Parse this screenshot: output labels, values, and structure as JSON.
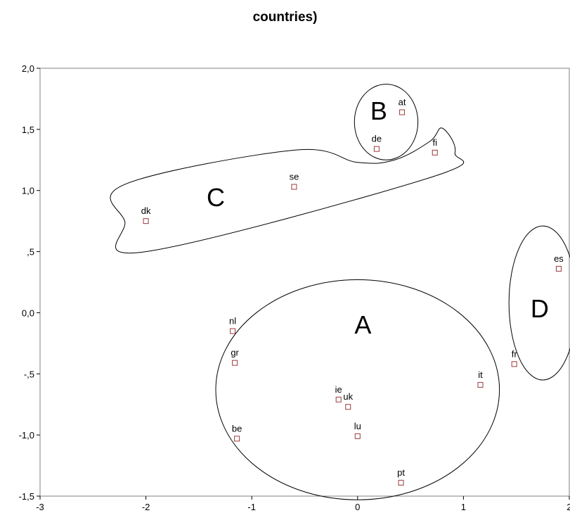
{
  "chart_data": {
    "type": "scatter",
    "title": "countries)",
    "xlim": [
      -3,
      2
    ],
    "ylim": [
      -1.5,
      2.0
    ],
    "x_ticks": [
      "-3",
      "-2",
      "-1",
      "0",
      "1",
      "2"
    ],
    "y_ticks": [
      "-1,5",
      "-1,0",
      "-,5",
      "0,0",
      ",5",
      "1,0",
      "1,5",
      "2,0"
    ],
    "grid": false,
    "marker_color": "#9b3a3a",
    "points": [
      {
        "label": "at",
        "x": 0.42,
        "y": 1.64
      },
      {
        "label": "de",
        "x": 0.18,
        "y": 1.34
      },
      {
        "label": "fi",
        "x": 0.73,
        "y": 1.31
      },
      {
        "label": "se",
        "x": -0.6,
        "y": 1.03
      },
      {
        "label": "dk",
        "x": -2.0,
        "y": 0.75
      },
      {
        "label": "es",
        "x": 1.9,
        "y": 0.36
      },
      {
        "label": "fr",
        "x": 1.48,
        "y": -0.42
      },
      {
        "label": "nl",
        "x": -1.18,
        "y": -0.15
      },
      {
        "label": "gr",
        "x": -1.16,
        "y": -0.41
      },
      {
        "label": "it",
        "x": 1.16,
        "y": -0.59
      },
      {
        "label": "ie",
        "x": -0.18,
        "y": -0.71
      },
      {
        "label": "uk",
        "x": -0.09,
        "y": -0.77
      },
      {
        "label": "lu",
        "x": 0.0,
        "y": -1.01
      },
      {
        "label": "be",
        "x": -1.14,
        "y": -1.03
      },
      {
        "label": "pt",
        "x": 0.41,
        "y": -1.39
      }
    ],
    "clusters": [
      {
        "label": "A",
        "label_x": 0.05,
        "label_y": -0.1,
        "shape": "ellipse",
        "cx": 0.0,
        "cy": -0.63,
        "rx": 1.34,
        "ry": 0.9
      },
      {
        "label": "B",
        "label_x": 0.2,
        "label_y": 1.65,
        "shape": "ellipse",
        "cx": 0.27,
        "cy": 1.56,
        "rx": 0.3,
        "ry": 0.31
      },
      {
        "label": "C",
        "label_x": -1.34,
        "label_y": 0.94,
        "shape": "path",
        "outline": [
          [
            -2.0,
            0.5
          ],
          [
            0.7,
            1.11
          ],
          [
            0.92,
            1.31
          ],
          [
            0.8,
            1.51
          ],
          [
            0.68,
            1.4
          ],
          [
            0.35,
            1.25
          ],
          [
            0.0,
            1.23
          ],
          [
            -0.6,
            1.33
          ],
          [
            -2.2,
            1.05
          ],
          [
            -2.2,
            0.75
          ]
        ]
      },
      {
        "label": "D",
        "label_x": 1.72,
        "label_y": 0.03,
        "shape": "ellipse",
        "cx": 1.75,
        "cy": 0.08,
        "rx": 0.32,
        "ry": 0.63
      }
    ]
  }
}
